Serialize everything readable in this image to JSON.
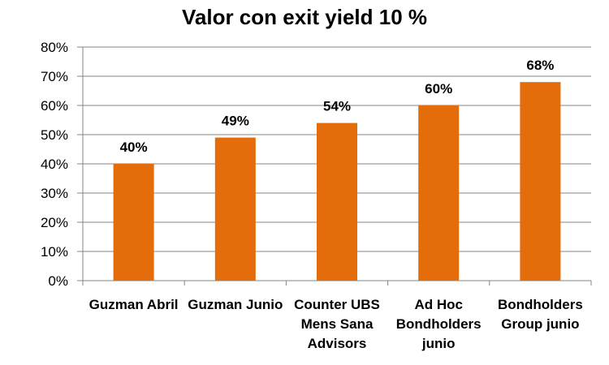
{
  "chart_data": {
    "type": "bar",
    "title": "Valor con exit yield 10 %",
    "categories": [
      "Guzman Abril",
      "Guzman Junio",
      "Counter UBS Mens Sana Advisors",
      "Ad Hoc Bondholders junio",
      "Bondholders Group junio"
    ],
    "category_lines": [
      [
        "Guzman Abril"
      ],
      [
        "Guzman Junio"
      ],
      [
        "Counter UBS",
        "Mens Sana",
        "Advisors"
      ],
      [
        "Ad Hoc",
        "Bondholders",
        "junio"
      ],
      [
        "Bondholders",
        "Group junio"
      ]
    ],
    "values": [
      40,
      49,
      54,
      60,
      68
    ],
    "data_labels": [
      "40%",
      "49%",
      "54%",
      "60%",
      "68%"
    ],
    "yticks": [
      "0%",
      "10%",
      "20%",
      "30%",
      "40%",
      "50%",
      "60%",
      "70%",
      "80%"
    ],
    "ylim": [
      0,
      80
    ],
    "xlabel": "",
    "ylabel": "",
    "grid": true,
    "legend": "none",
    "bar_color": "#E46C0A",
    "grid_color": "#868686"
  }
}
